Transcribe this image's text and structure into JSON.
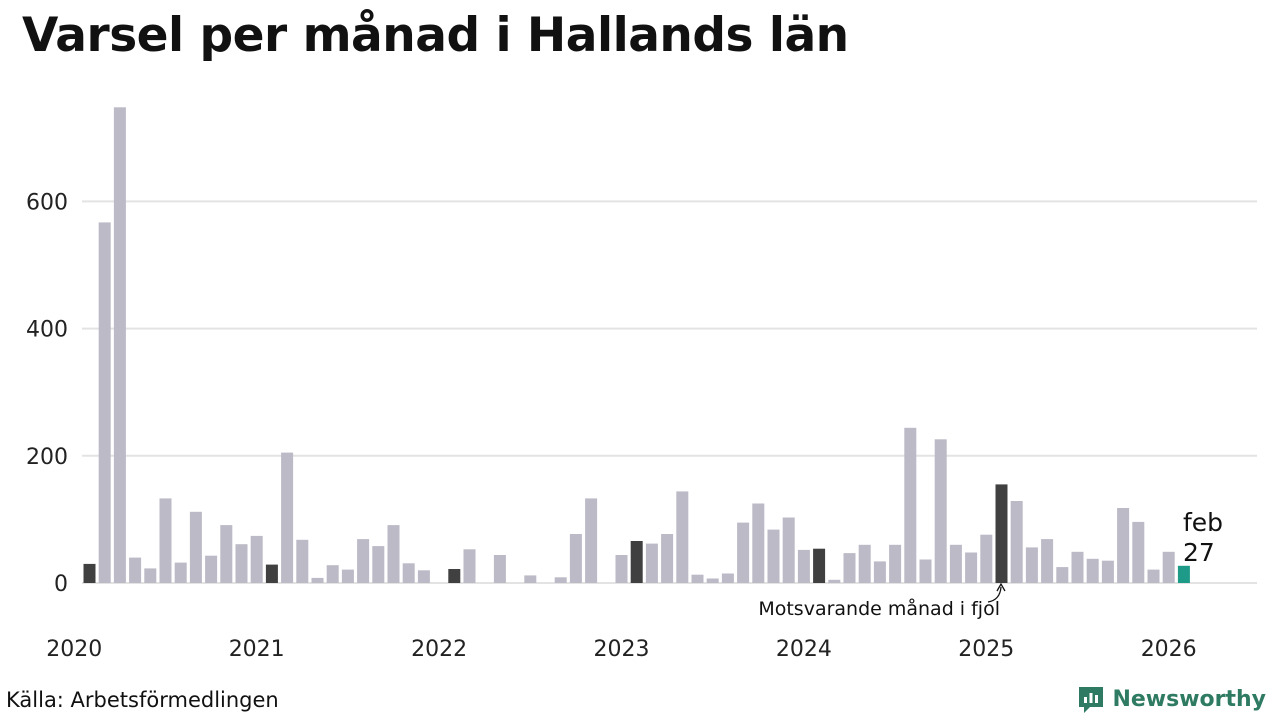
{
  "title": "Varsel per månad i Hallands län",
  "source": "Källa: Arbetsförmedlingen",
  "brand": "Newsworthy",
  "colors": {
    "regular": "#bbbac6",
    "same_month": "#404040",
    "latest": "#1d9a88",
    "grid": "#e3e3e3",
    "brand": "#2f7a62"
  },
  "chart_data": {
    "type": "bar",
    "title": "Varsel per månad i Hallands län",
    "xlabel": "",
    "ylabel": "",
    "ylim": [
      0,
      750
    ],
    "y_ticks": [
      0,
      200,
      400,
      600
    ],
    "x_ticks": [
      "2020",
      "2021",
      "2022",
      "2023",
      "2024",
      "2025",
      "2026"
    ],
    "start": "2020-02",
    "months": [
      "2020-02",
      "2020-03",
      "2020-04",
      "2020-05",
      "2020-06",
      "2020-07",
      "2020-08",
      "2020-09",
      "2020-10",
      "2020-11",
      "2020-12",
      "2021-01",
      "2021-02",
      "2021-03",
      "2021-04",
      "2021-05",
      "2021-06",
      "2021-07",
      "2021-08",
      "2021-09",
      "2021-10",
      "2021-11",
      "2021-12",
      "2022-01",
      "2022-02",
      "2022-03",
      "2022-04",
      "2022-05",
      "2022-06",
      "2022-07",
      "2022-08",
      "2022-09",
      "2022-10",
      "2022-11",
      "2022-12",
      "2023-01",
      "2023-02",
      "2023-03",
      "2023-04",
      "2023-05",
      "2023-06",
      "2023-07",
      "2023-08",
      "2023-09",
      "2023-10",
      "2023-11",
      "2023-12",
      "2024-01",
      "2024-02",
      "2024-03",
      "2024-04",
      "2024-05",
      "2024-06",
      "2024-07",
      "2024-08",
      "2024-09",
      "2024-10",
      "2024-11",
      "2024-12",
      "2025-01",
      "2025-02",
      "2025-03",
      "2025-04",
      "2025-05",
      "2025-06",
      "2025-07",
      "2025-08",
      "2025-09",
      "2025-10",
      "2025-11",
      "2025-12",
      "2026-01",
      "2026-02"
    ],
    "values": [
      30,
      567,
      748,
      40,
      23,
      133,
      32,
      112,
      43,
      91,
      61,
      74,
      29,
      205,
      68,
      8,
      28,
      21,
      69,
      58,
      91,
      31,
      20,
      0,
      22,
      53,
      0,
      44,
      0,
      12,
      0,
      9,
      77,
      133,
      0,
      44,
      66,
      62,
      77,
      144,
      13,
      7,
      15,
      95,
      125,
      84,
      103,
      52,
      54,
      5,
      47,
      60,
      34,
      60,
      244,
      37,
      226,
      60,
      48,
      76,
      155,
      129,
      56,
      69,
      25,
      49,
      38,
      35,
      118,
      96,
      21,
      49,
      27
    ],
    "same_month_previous_years": [
      "2020-02",
      "2021-02",
      "2022-02",
      "2023-02",
      "2024-02",
      "2025-02"
    ],
    "latest": {
      "month": "feb",
      "value": 27
    },
    "annotation": "Motsvarande månad i fjol"
  }
}
